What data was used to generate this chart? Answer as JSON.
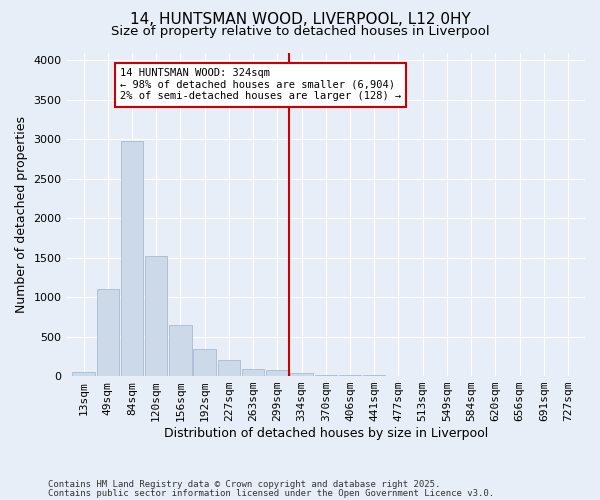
{
  "title_line1": "14, HUNTSMAN WOOD, LIVERPOOL, L12 0HY",
  "title_line2": "Size of property relative to detached houses in Liverpool",
  "xlabel": "Distribution of detached houses by size in Liverpool",
  "ylabel": "Number of detached properties",
  "categories": [
    "13sqm",
    "49sqm",
    "84sqm",
    "120sqm",
    "156sqm",
    "192sqm",
    "227sqm",
    "263sqm",
    "299sqm",
    "334sqm",
    "370sqm",
    "406sqm",
    "441sqm",
    "477sqm",
    "513sqm",
    "549sqm",
    "584sqm",
    "620sqm",
    "656sqm",
    "691sqm",
    "727sqm"
  ],
  "values": [
    50,
    1100,
    2980,
    1520,
    650,
    340,
    210,
    90,
    80,
    45,
    20,
    20,
    15,
    0,
    0,
    0,
    0,
    0,
    0,
    0,
    0
  ],
  "bar_color": "#ccd9e8",
  "bar_edge_color": "#aabbd0",
  "vline_index": 9,
  "vline_color": "#cc0000",
  "annotation_text": "14 HUNTSMAN WOOD: 324sqm\n← 98% of detached houses are smaller (6,904)\n2% of semi-detached houses are larger (128) →",
  "annotation_box_facecolor": "#ffffff",
  "annotation_box_edgecolor": "#cc0000",
  "ylim": [
    0,
    4100
  ],
  "yticks": [
    0,
    500,
    1000,
    1500,
    2000,
    2500,
    3000,
    3500,
    4000
  ],
  "bg_color": "#e8eef8",
  "grid_color": "#ffffff",
  "footer_line1": "Contains HM Land Registry data © Crown copyright and database right 2025.",
  "footer_line2": "Contains public sector information licensed under the Open Government Licence v3.0.",
  "title_fontsize": 11,
  "subtitle_fontsize": 9.5,
  "axis_label_fontsize": 9,
  "tick_fontsize": 8,
  "annotation_fontsize": 7.5,
  "footer_fontsize": 6.5
}
